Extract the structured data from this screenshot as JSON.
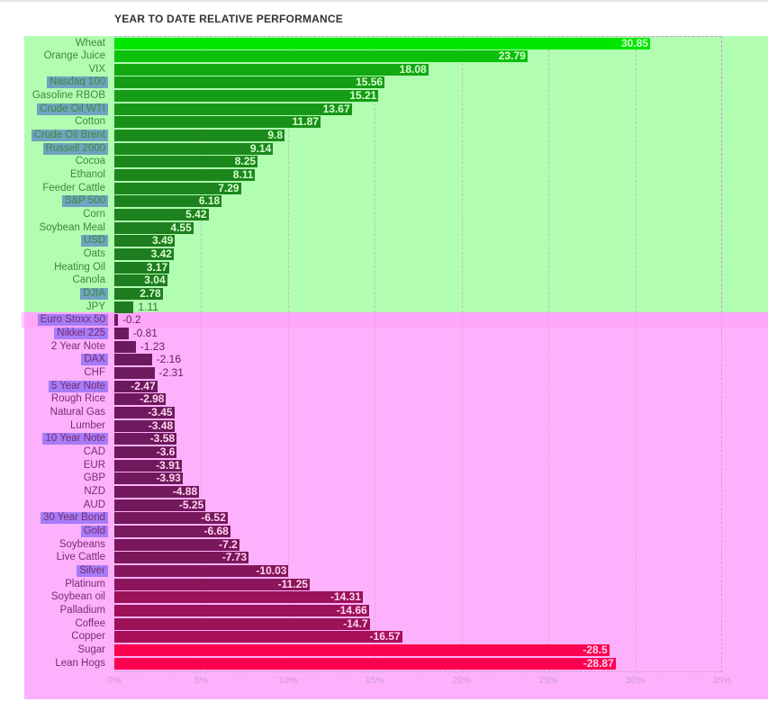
{
  "chart_data": {
    "type": "bar",
    "orientation": "horizontal",
    "title": "YEAR TO DATE RELATIVE PERFORMANCE",
    "xlim": [
      0,
      35
    ],
    "xticks": [
      "0%",
      "5%",
      "10%",
      "15%",
      "20%",
      "25%",
      "30%",
      "35%"
    ],
    "colors": {
      "pos_high": "#00e600",
      "pos_low": "#1f7a1f",
      "neg_low": "#6a1a5e",
      "neg_high": "#ff0050",
      "highlight_pos": "#6fa3c0",
      "highlight_neg": "#a57cf6",
      "label_pos": "#3b8b3b",
      "label_neg": "#7a2a70"
    },
    "items": [
      {
        "name": "Wheat",
        "value": 30.85
      },
      {
        "name": "Orange Juice",
        "value": 23.79
      },
      {
        "name": "VIX",
        "value": 18.08
      },
      {
        "name": "Nasdaq 100",
        "value": 15.56,
        "highlight": true
      },
      {
        "name": "Gasoline RBOB",
        "value": 15.21
      },
      {
        "name": "Crude Oil WTI",
        "value": 13.67,
        "highlight": true
      },
      {
        "name": "Cotton",
        "value": 11.87
      },
      {
        "name": "Crude Oil Brent",
        "value": 9.8,
        "highlight": true
      },
      {
        "name": "Russell 2000",
        "value": 9.14,
        "highlight": true
      },
      {
        "name": "Cocoa",
        "value": 8.25
      },
      {
        "name": "Ethanol",
        "value": 8.11
      },
      {
        "name": "Feeder Cattle",
        "value": 7.29
      },
      {
        "name": "S&P 500",
        "value": 6.18,
        "highlight": true
      },
      {
        "name": "Corn",
        "value": 5.42
      },
      {
        "name": "Soybean Meal",
        "value": 4.55
      },
      {
        "name": "USD",
        "value": 3.49,
        "highlight": true
      },
      {
        "name": "Oats",
        "value": 3.42
      },
      {
        "name": "Heating Oil",
        "value": 3.17
      },
      {
        "name": "Canola",
        "value": 3.04
      },
      {
        "name": "DJIA",
        "value": 2.78,
        "highlight": true
      },
      {
        "name": "JPY",
        "value": 1.11
      },
      {
        "name": "Euro Stoxx 50",
        "value": -0.2,
        "highlight": true
      },
      {
        "name": "Nikkei 225",
        "value": -0.81,
        "highlight": true
      },
      {
        "name": "2 Year Note",
        "value": -1.23
      },
      {
        "name": "DAX",
        "value": -2.16,
        "highlight": true
      },
      {
        "name": "CHF",
        "value": -2.31
      },
      {
        "name": "5 Year Note",
        "value": -2.47,
        "highlight": true
      },
      {
        "name": "Rough Rice",
        "value": -2.98
      },
      {
        "name": "Natural Gas",
        "value": -3.45
      },
      {
        "name": "Lumber",
        "value": -3.48
      },
      {
        "name": "10 Year Note",
        "value": -3.58,
        "highlight": true
      },
      {
        "name": "CAD",
        "value": -3.6
      },
      {
        "name": "EUR",
        "value": -3.91
      },
      {
        "name": "GBP",
        "value": -3.93
      },
      {
        "name": "NZD",
        "value": -4.88
      },
      {
        "name": "AUD",
        "value": -5.25
      },
      {
        "name": "30 Year Bond",
        "value": -6.52,
        "highlight": true
      },
      {
        "name": "Gold",
        "value": -6.68,
        "highlight": true
      },
      {
        "name": "Soybeans",
        "value": -7.2
      },
      {
        "name": "Live Cattle",
        "value": -7.73
      },
      {
        "name": "Silver",
        "value": -10.03,
        "highlight": true
      },
      {
        "name": "Platinum",
        "value": -11.25
      },
      {
        "name": "Soybean oil",
        "value": -14.31
      },
      {
        "name": "Palladium",
        "value": -14.66
      },
      {
        "name": "Coffee",
        "value": -14.7
      },
      {
        "name": "Copper",
        "value": -16.57
      },
      {
        "name": "Sugar",
        "value": -28.5
      },
      {
        "name": "Lean Hogs",
        "value": -28.87
      }
    ]
  }
}
